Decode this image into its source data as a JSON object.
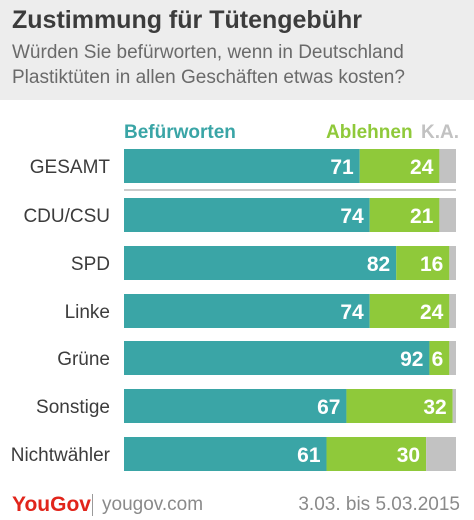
{
  "header": {
    "title": "Zustimmung für Tütengebühr",
    "subtitle": "Würden Sie befürworten, wenn in Deutschland Plastiktüten in allen Geschäften etwas kosten?"
  },
  "footer": {
    "logo": "YouGov",
    "site": "yougov.com",
    "date": "3.03. bis 5.03.2015"
  },
  "colors": {
    "befuerworten": "#3aa5a6",
    "ablehnen": "#8fc93a",
    "ka": "#c2c2c2",
    "label_text": "#3c3c3c",
    "header_bg": "#ededed"
  },
  "chart_data": {
    "type": "bar",
    "orientation": "horizontal",
    "stacked": true,
    "xlim": [
      0,
      100
    ],
    "categories": [
      "GESAMT",
      "CDU/CSU",
      "SPD",
      "Linke",
      "Grüne",
      "Sonstige",
      "Nichtwähler"
    ],
    "series": [
      {
        "name": "Befürworten",
        "values": [
          71,
          74,
          82,
          74,
          92,
          67,
          61
        ]
      },
      {
        "name": "Ablehnen",
        "values": [
          24,
          21,
          16,
          24,
          6,
          32,
          30
        ]
      },
      {
        "name": "K.A.",
        "values": [
          5,
          5,
          2,
          2,
          2,
          1,
          9
        ]
      }
    ],
    "value_labels": [
      [
        "71",
        "74",
        "82",
        "74",
        "92",
        "67",
        "61"
      ],
      [
        "24",
        "21",
        "16",
        "24",
        "6",
        "32",
        "30"
      ]
    ],
    "legend_placement": "top"
  }
}
